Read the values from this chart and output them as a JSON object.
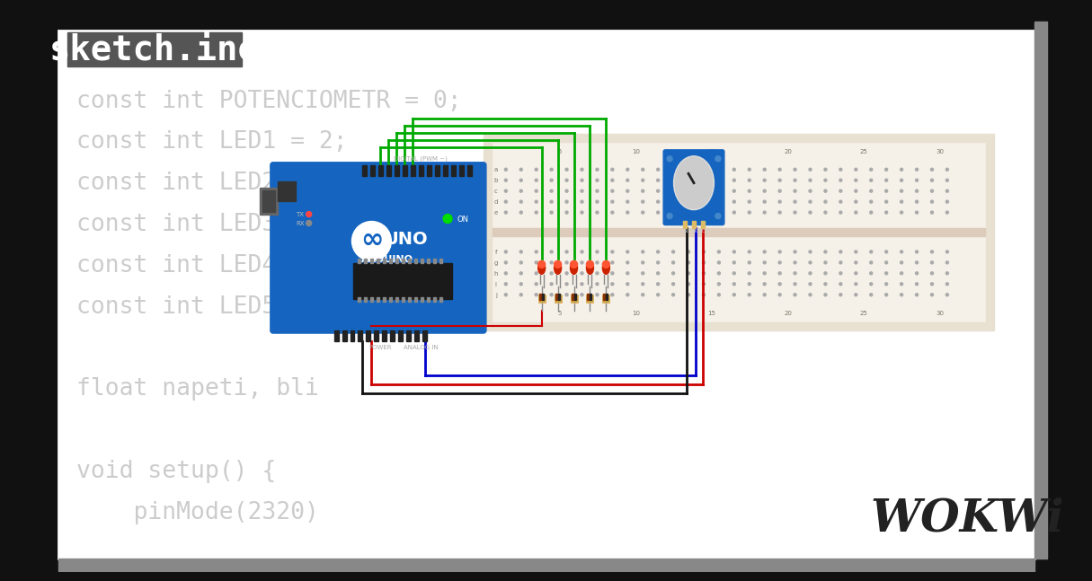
{
  "bg_color": "#ffffff",
  "outer_border_color": "#333333",
  "top_bar_color": "#111111",
  "title": "sketch.ino",
  "title_bg": "#555555",
  "title_color": "#ffffff",
  "title_fontsize": 28,
  "code_lines": [
    "const int POTENCIOMETR = 0;",
    "const int LED1 = 2;",
    "const int LED2 = 3;",
    "const int LED3 = 4;",
    "const int LED4 =",
    "const int LED5 =",
    "",
    "float napeti, bli",
    "",
    "void setup() {",
    "    pinMode(2320)"
  ],
  "code_color": "#cccccc",
  "code_fontsize": 19,
  "wokwi_color": "#222222",
  "wokwi_fontsize": 36,
  "arduino_blue": "#1565c0",
  "breadboard_bg": "#f5f0e8",
  "green_wire": "#00aa00",
  "red_wire": "#cc0000",
  "blue_wire": "#0000cc",
  "black_wire": "#111111"
}
